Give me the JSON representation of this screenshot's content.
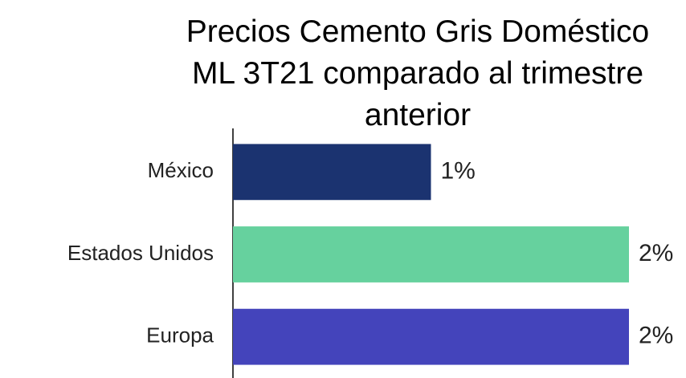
{
  "chart_data": {
    "type": "bar",
    "orientation": "horizontal",
    "title": "Precios Cemento Gris Doméstico ML 3T21 comparado al trimestre anterior",
    "categories": [
      "México",
      "Estados Unidos",
      "Europa"
    ],
    "values": [
      1,
      2,
      2
    ],
    "value_labels": [
      "1%",
      "2%",
      "2%"
    ],
    "colors": [
      "#1b3370",
      "#66d19e",
      "#4444bb"
    ]
  }
}
